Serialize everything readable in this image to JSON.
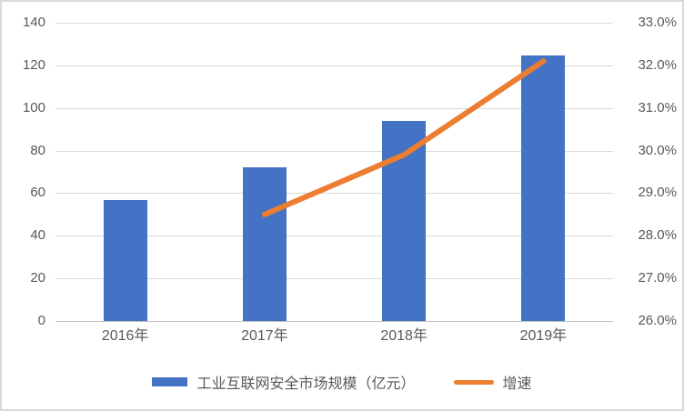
{
  "chart_data": {
    "type": "bar",
    "combo": "bar+line",
    "title": "",
    "categories": [
      "2016年",
      "2017年",
      "2018年",
      "2019年"
    ],
    "series": [
      {
        "name": "工业互联网安全市场规模（亿元）",
        "type": "bar",
        "axis": "left",
        "values": [
          56.7,
          72.3,
          93.7,
          124.5
        ],
        "color": "#4472c4"
      },
      {
        "name": "增速",
        "type": "line",
        "axis": "right",
        "values": [
          null,
          28.5,
          29.9,
          32.1
        ],
        "unit": "%",
        "color": "#ed7d31"
      }
    ],
    "left_axis": {
      "min": 0,
      "max": 140,
      "step": 20,
      "ticks": [
        "0",
        "20",
        "40",
        "60",
        "80",
        "100",
        "120",
        "140"
      ]
    },
    "right_axis": {
      "min": 26,
      "max": 33,
      "step": 1,
      "ticks": [
        "26.0%",
        "27.0%",
        "28.0%",
        "29.0%",
        "30.0%",
        "31.0%",
        "32.0%",
        "33.0%"
      ]
    },
    "grid": true,
    "legend_position": "bottom",
    "text_color": "#595959",
    "gridline_color": "#d9d9d9"
  }
}
